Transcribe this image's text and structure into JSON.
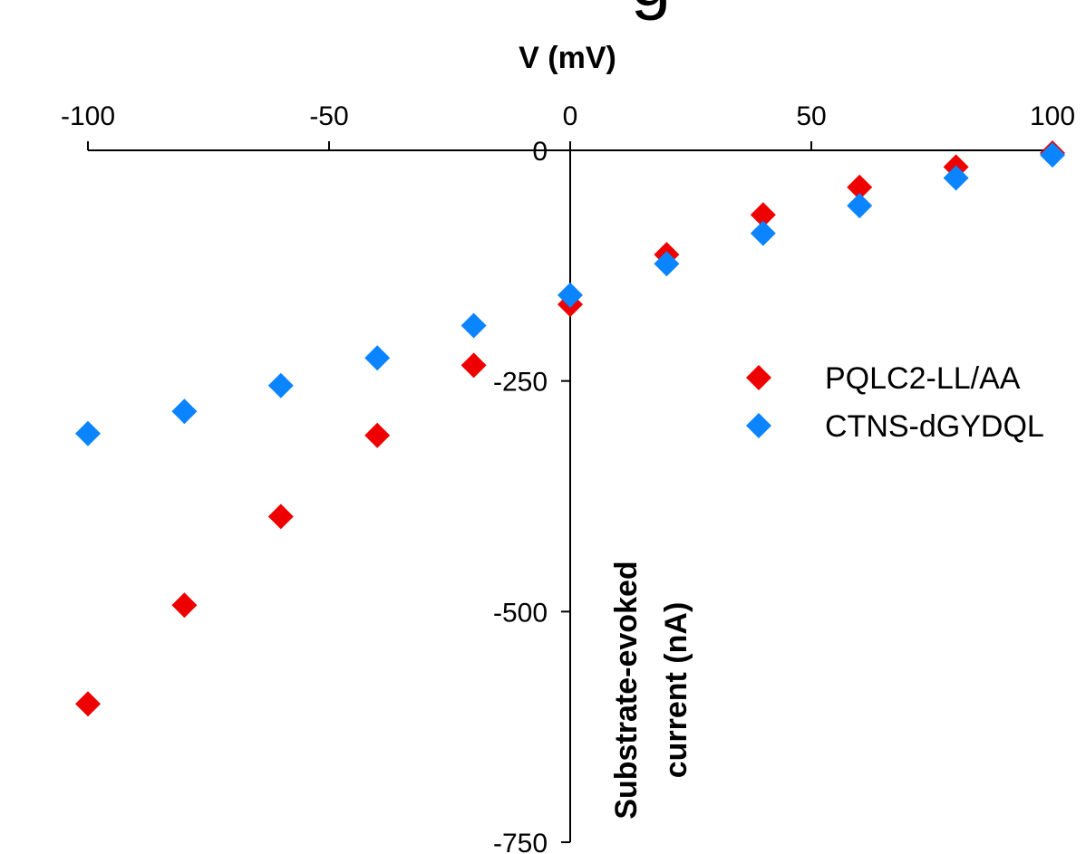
{
  "cut_off_title_fragment": "g",
  "chart_data": {
    "type": "scatter",
    "xlabel": "V (mV)",
    "ylabel_lines": [
      "Substrate-evoked",
      "current (nA)"
    ],
    "xlim": [
      -100,
      100
    ],
    "ylim": [
      -750,
      0
    ],
    "x_ticks": [
      -100,
      -50,
      0,
      50,
      100
    ],
    "y_ticks": [
      0,
      -250,
      -500,
      -750
    ],
    "x_tick_labels": [
      "-100",
      "-50",
      "0",
      "50",
      "100"
    ],
    "y_tick_labels": [
      "0",
      "-250",
      "-500",
      "-750"
    ],
    "x_axis_position": "top",
    "grid": false,
    "legend_position": "right",
    "marker": "diamond",
    "series": [
      {
        "name": "PQLC2-LL/AA",
        "color": "#ee0000",
        "x": [
          -100,
          -80,
          -60,
          -40,
          -20,
          0,
          20,
          40,
          60,
          80,
          100
        ],
        "y": [
          -600,
          -493,
          -397,
          -309,
          -233,
          -167,
          -113,
          -70,
          -40,
          -18,
          -3
        ]
      },
      {
        "name": "CTNS-dGYDQL",
        "color": "#0a84ff",
        "x": [
          -100,
          -80,
          -60,
          -40,
          -20,
          0,
          20,
          40,
          60,
          80,
          100
        ],
        "y": [
          -307,
          -283,
          -255,
          -225,
          -190,
          -157,
          -123,
          -90,
          -60,
          -30,
          -5
        ]
      }
    ]
  }
}
